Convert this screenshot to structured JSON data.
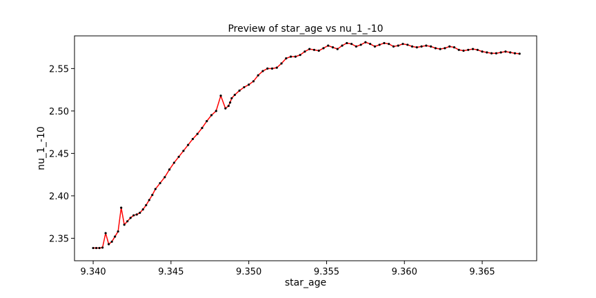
{
  "chart_data": {
    "type": "line",
    "title": "Preview of star_age vs nu_1_-10",
    "xlabel": "star_age",
    "ylabel": "nu_1_-10",
    "xlim": [
      9.3388,
      9.3685
    ],
    "ylim": [
      2.3235,
      2.5885
    ],
    "x_ticks": [
      9.34,
      9.345,
      9.35,
      9.355,
      9.36,
      9.365
    ],
    "x_tick_labels": [
      "9.340",
      "9.345",
      "9.350",
      "9.355",
      "9.360",
      "9.365"
    ],
    "y_ticks": [
      2.35,
      2.4,
      2.45,
      2.5,
      2.55
    ],
    "y_tick_labels": [
      "2.35",
      "2.40",
      "2.45",
      "2.50",
      "2.55"
    ],
    "grid": false,
    "line_color": "#ff0000",
    "marker_color": "#000000",
    "series": [
      {
        "x": [
          9.34,
          9.3402,
          9.3404,
          9.3406,
          9.3408,
          9.341,
          9.3412,
          9.3414,
          9.3416,
          9.3418,
          9.342,
          9.3422,
          9.3424,
          9.3426,
          9.3428,
          9.343,
          9.3432,
          9.3434,
          9.3436,
          9.3438,
          9.344,
          9.3443,
          9.3446,
          9.3449,
          9.3452,
          9.3455,
          9.3458,
          9.3461,
          9.3464,
          9.3467,
          9.347,
          9.3473,
          9.3476,
          9.3479,
          9.3482,
          9.3485,
          9.3487,
          9.3488,
          9.3489,
          9.3491,
          9.3494,
          9.3497,
          9.35,
          9.3503,
          9.3506,
          9.3509,
          9.3512,
          9.3515,
          9.3518,
          9.3521,
          9.3524,
          9.3527,
          9.353,
          9.3533,
          9.3536,
          9.3539,
          9.3542,
          9.3545,
          9.3548,
          9.3551,
          9.3554,
          9.3557,
          9.356,
          9.3563,
          9.3566,
          9.3569,
          9.3572,
          9.3575,
          9.3578,
          9.3581,
          9.3584,
          9.3587,
          9.359,
          9.3593,
          9.3596,
          9.3599,
          9.3602,
          9.3605,
          9.3608,
          9.3611,
          9.3614,
          9.3617,
          9.362,
          9.3623,
          9.3626,
          9.3629,
          9.3632,
          9.3635,
          9.3638,
          9.3641,
          9.3644,
          9.3647,
          9.365,
          9.3653,
          9.3656,
          9.3659,
          9.3662,
          9.3665,
          9.3668,
          9.3671,
          9.3674
        ],
        "y": [
          2.3385,
          2.3385,
          2.3385,
          2.339,
          2.356,
          2.343,
          2.346,
          2.352,
          2.358,
          2.386,
          2.366,
          2.37,
          2.374,
          2.377,
          2.378,
          2.38,
          2.384,
          2.389,
          2.395,
          2.401,
          2.408,
          2.415,
          2.422,
          2.431,
          2.439,
          2.446,
          2.453,
          2.46,
          2.467,
          2.473,
          2.48,
          2.488,
          2.495,
          2.5,
          2.518,
          2.503,
          2.506,
          2.51,
          2.515,
          2.519,
          2.524,
          2.528,
          2.531,
          2.535,
          2.542,
          2.547,
          2.55,
          2.55,
          2.551,
          2.556,
          2.562,
          2.564,
          2.564,
          2.566,
          2.57,
          2.573,
          2.572,
          2.571,
          2.574,
          2.577,
          2.575,
          2.573,
          2.577,
          2.58,
          2.579,
          2.576,
          2.578,
          2.581,
          2.579,
          2.576,
          2.578,
          2.58,
          2.579,
          2.576,
          2.577,
          2.579,
          2.578,
          2.576,
          2.575,
          2.576,
          2.577,
          2.576,
          2.574,
          2.573,
          2.574,
          2.576,
          2.575,
          2.572,
          2.571,
          2.572,
          2.573,
          2.572,
          2.57,
          2.569,
          2.568,
          2.568,
          2.569,
          2.57,
          2.569,
          2.568,
          2.5675
        ]
      }
    ]
  }
}
